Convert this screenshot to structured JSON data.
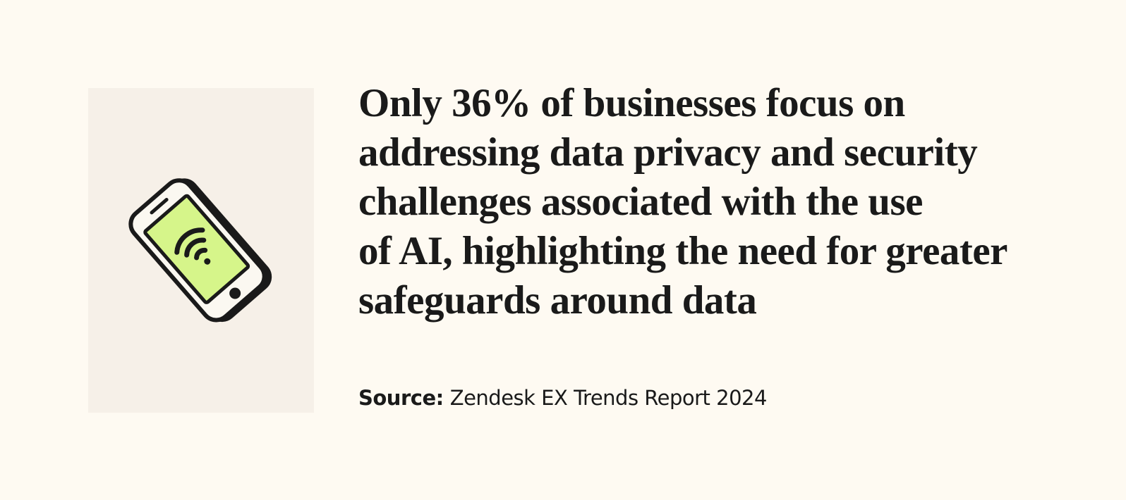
{
  "card": {
    "heading_lines": [
      "Only 36% of businesses focus on",
      "addressing data privacy and security",
      "challenges associated with the use",
      "of AI, highlighting the need for greater",
      "safeguards around data"
    ],
    "source": {
      "label": "Source:",
      "text": "Zendesk EX Trends Report 2024"
    }
  }
}
